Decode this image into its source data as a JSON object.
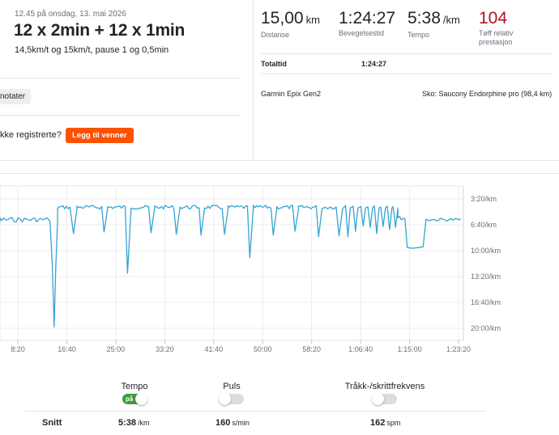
{
  "activity": {
    "date": "12.45 på onsdag, 13. mai 2026",
    "title": "12 x 2min + 12 x 1min",
    "description": "14,5km/t og 15km/t, pause 1 og 0,5min",
    "notes_chip": "notater",
    "question": "kke registrerte?",
    "add_friends_button": "Legg til venner"
  },
  "stats": [
    {
      "value": "15,00",
      "unit": "km",
      "label": "Distanse"
    },
    {
      "value": "1:24:27",
      "unit": "",
      "label": "Bevegelsestid"
    },
    {
      "value": "5:38",
      "unit": "/km",
      "label": "Tempo"
    },
    {
      "value": "104",
      "unit": "",
      "label": "Tøff relativ prestasjon"
    }
  ],
  "totals": {
    "label": "Totaltid",
    "value": "1:24:27"
  },
  "device": "Garmin Epix Gen2",
  "shoe": "Sko: Saucony Endorphine pro (98,4 km)",
  "chart_data": {
    "type": "line",
    "series": [
      {
        "name": "Tempo",
        "color": "#36a3d4"
      }
    ],
    "x_unit": "elapsed time (min)",
    "x_ticks": [
      {
        "min": 8.33,
        "label": "8:20"
      },
      {
        "min": 16.67,
        "label": "16:40"
      },
      {
        "min": 25,
        "label": "25:00"
      },
      {
        "min": 33.33,
        "label": "33:20"
      },
      {
        "min": 41.67,
        "label": "41:40"
      },
      {
        "min": 50,
        "label": "50:00"
      },
      {
        "min": 58.33,
        "label": "58:20"
      },
      {
        "min": 66.67,
        "label": "1:06:40"
      },
      {
        "min": 75,
        "label": "1:15:00"
      },
      {
        "min": 83.33,
        "label": "1:23:20"
      }
    ],
    "y_unit": "min/km",
    "y_ticks": [
      {
        "pace": 3.33,
        "label": "3:20/km"
      },
      {
        "pace": 6.67,
        "label": "6:40/km"
      },
      {
        "pace": 10,
        "label": "10:00/km"
      },
      {
        "pace": 13.33,
        "label": "13:20/km"
      },
      {
        "pace": 16.67,
        "label": "16:40/km"
      },
      {
        "pace": 20,
        "label": "20:00/km"
      }
    ],
    "grid": true,
    "segments": [
      {
        "t": [
          0,
          13.5
        ],
        "pace": 6.0
      },
      {
        "dip": 14.5,
        "pace": 19.8
      },
      {
        "intervals2": [
          15.6,
          20.8,
          25.0,
          28.5,
          33.0,
          37.2,
          41.2,
          45.5,
          49.8,
          53.5,
          57.6,
          61.5
        ]
      },
      {
        "recoveries_2min": [
          17.8,
          23.0,
          27.0,
          31.0,
          35.3,
          39.5,
          43.5,
          47.8,
          51.8,
          55.5,
          59.5,
          63.0
        ],
        "pace": 7.5
      },
      {
        "long_walk": [
          74.5,
          77.3
        ],
        "pace": 9.6
      },
      {
        "end": [
          77.8,
          84.0
        ],
        "pace": 6.0
      }
    ]
  },
  "toggles": [
    {
      "label": "Tempo",
      "on": true,
      "on_text": "på"
    },
    {
      "label": "Puls",
      "on": false
    },
    {
      "label": "Tråkk-/skrittfrekvens",
      "on": false
    }
  ],
  "snitt": {
    "label": "Snitt",
    "values": [
      {
        "value": "5:38",
        "unit": "/km"
      },
      {
        "value": "160",
        "unit": "s/min"
      },
      {
        "value": "162",
        "unit": "spm"
      }
    ]
  }
}
